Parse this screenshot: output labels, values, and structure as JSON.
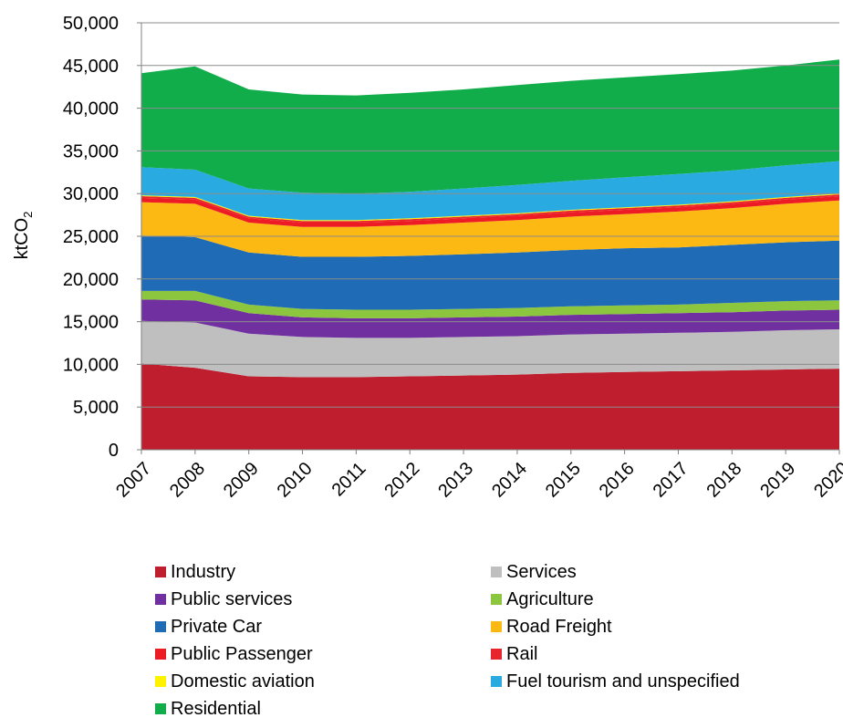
{
  "chart_data": {
    "type": "area",
    "stacked": true,
    "title": "",
    "xlabel": "",
    "ylabel": "ktCO",
    "ylabel_subscript": "2",
    "ylim": [
      0,
      50000
    ],
    "yticks": [
      0,
      5000,
      10000,
      15000,
      20000,
      25000,
      30000,
      35000,
      40000,
      45000,
      50000
    ],
    "ytick_labels": [
      "0",
      "5,000",
      "10,000",
      "15,000",
      "20,000",
      "25,000",
      "30,000",
      "35,000",
      "40,000",
      "45,000",
      "50,000"
    ],
    "grid": "horizontal",
    "legend_position": "bottom",
    "x": [
      "2007",
      "2008",
      "2009",
      "2010",
      "2011",
      "2012",
      "2013",
      "2014",
      "2015",
      "2016",
      "2017",
      "2018",
      "2019",
      "2020"
    ],
    "series": [
      {
        "name": "Industry",
        "color": "#BE1E2D",
        "values": [
          10100,
          9600,
          8600,
          8500,
          8500,
          8600,
          8700,
          8800,
          9000,
          9100,
          9200,
          9300,
          9400,
          9500
        ]
      },
      {
        "name": "Services",
        "color": "#BFBFBF",
        "values": [
          5000,
          5300,
          5000,
          4700,
          4600,
          4500,
          4500,
          4500,
          4500,
          4500,
          4500,
          4500,
          4600,
          4600
        ]
      },
      {
        "name": "Public services",
        "color": "#7030A0",
        "values": [
          2500,
          2600,
          2400,
          2300,
          2300,
          2300,
          2300,
          2300,
          2300,
          2300,
          2300,
          2300,
          2300,
          2300
        ]
      },
      {
        "name": "Agriculture",
        "color": "#8CC63F",
        "values": [
          1000,
          1100,
          1000,
          1000,
          1000,
          1000,
          1000,
          1000,
          1000,
          1000,
          1000,
          1100,
          1100,
          1100
        ]
      },
      {
        "name": "Private Car",
        "color": "#1F6BB5",
        "values": [
          6500,
          6300,
          6100,
          6100,
          6200,
          6300,
          6400,
          6500,
          6600,
          6700,
          6700,
          6800,
          6900,
          7000
        ]
      },
      {
        "name": "Road Freight",
        "color": "#FDB913",
        "values": [
          3900,
          3900,
          3500,
          3500,
          3500,
          3600,
          3700,
          3800,
          3900,
          4000,
          4200,
          4300,
          4500,
          4700
        ]
      },
      {
        "name": "Public Passenger",
        "color": "#ED1C24",
        "values": [
          500,
          500,
          500,
          500,
          500,
          500,
          500,
          500,
          500,
          500,
          500,
          500,
          500,
          500
        ]
      },
      {
        "name": "Rail",
        "color": "#E8242C",
        "values": [
          200,
          200,
          200,
          200,
          200,
          200,
          200,
          200,
          200,
          200,
          200,
          200,
          200,
          200
        ]
      },
      {
        "name": "Domestic aviation",
        "color": "#FFF200",
        "values": [
          100,
          100,
          100,
          100,
          100,
          100,
          100,
          100,
          100,
          100,
          100,
          100,
          100,
          100
        ]
      },
      {
        "name": "Fuel tourism and unspecified",
        "color": "#29ABE2",
        "values": [
          3300,
          3200,
          3200,
          3200,
          3100,
          3100,
          3200,
          3300,
          3400,
          3500,
          3600,
          3600,
          3700,
          3800
        ]
      },
      {
        "name": "Residential",
        "color": "#12AD4B",
        "values": [
          11000,
          12100,
          11600,
          11500,
          11500,
          11600,
          11600,
          11700,
          11700,
          11700,
          11700,
          11700,
          11700,
          11900
        ]
      }
    ]
  }
}
